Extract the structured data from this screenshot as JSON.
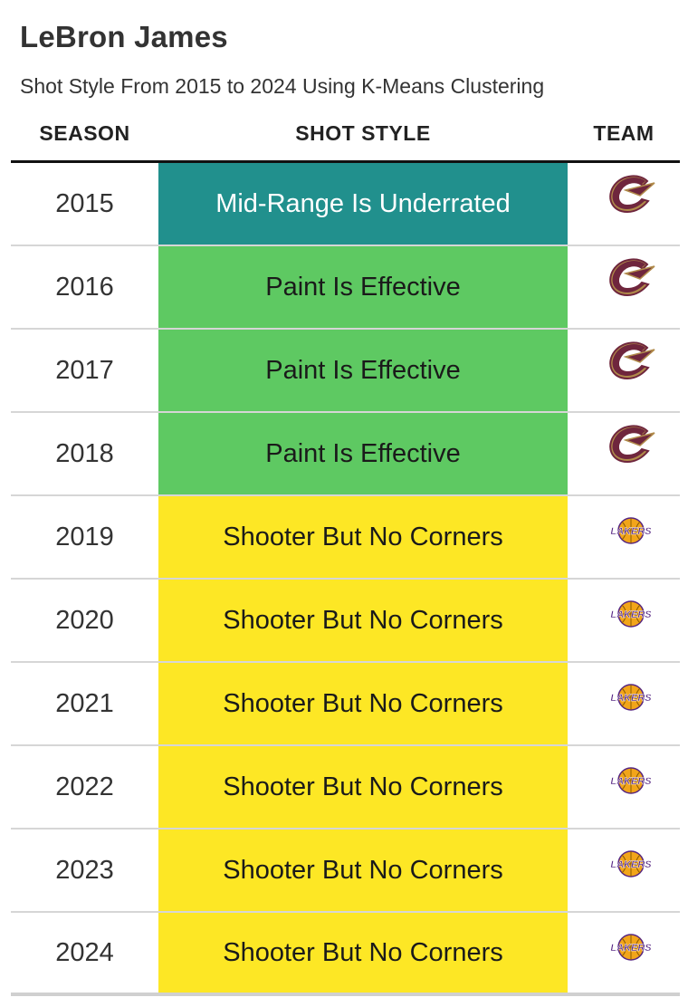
{
  "title": "LeBron James",
  "subtitle": "Shot Style From 2015 to 2024 Using K-Means Clustering",
  "columns": {
    "season": "SEASON",
    "style": "SHOT STYLE",
    "team": "TEAM"
  },
  "styles": {
    "Mid-Range Is Underrated": {
      "bg": "#21908d",
      "fg": "#ffffff"
    },
    "Paint Is Effective": {
      "bg": "#5ec962",
      "fg": "#1a1a1a"
    },
    "Shooter But No Corners": {
      "bg": "#fde725",
      "fg": "#1a1a1a"
    }
  },
  "team_logos": {
    "cavaliers": "cavaliers-logo-icon",
    "lakers": "lakers-logo-icon"
  },
  "chart_data": {
    "type": "table",
    "title": "LeBron James",
    "subtitle": "Shot Style From 2015 to 2024 Using K-Means Clustering",
    "rows": [
      {
        "season": "2015",
        "style": "Mid-Range Is Underrated",
        "team": "cavaliers"
      },
      {
        "season": "2016",
        "style": "Paint Is Effective",
        "team": "cavaliers"
      },
      {
        "season": "2017",
        "style": "Paint Is Effective",
        "team": "cavaliers"
      },
      {
        "season": "2018",
        "style": "Paint Is Effective",
        "team": "cavaliers"
      },
      {
        "season": "2019",
        "style": "Shooter But No Corners",
        "team": "lakers"
      },
      {
        "season": "2020",
        "style": "Shooter But No Corners",
        "team": "lakers"
      },
      {
        "season": "2021",
        "style": "Shooter But No Corners",
        "team": "lakers"
      },
      {
        "season": "2022",
        "style": "Shooter But No Corners",
        "team": "lakers"
      },
      {
        "season": "2023",
        "style": "Shooter But No Corners",
        "team": "lakers"
      },
      {
        "season": "2024",
        "style": "Shooter But No Corners",
        "team": "lakers"
      }
    ]
  }
}
